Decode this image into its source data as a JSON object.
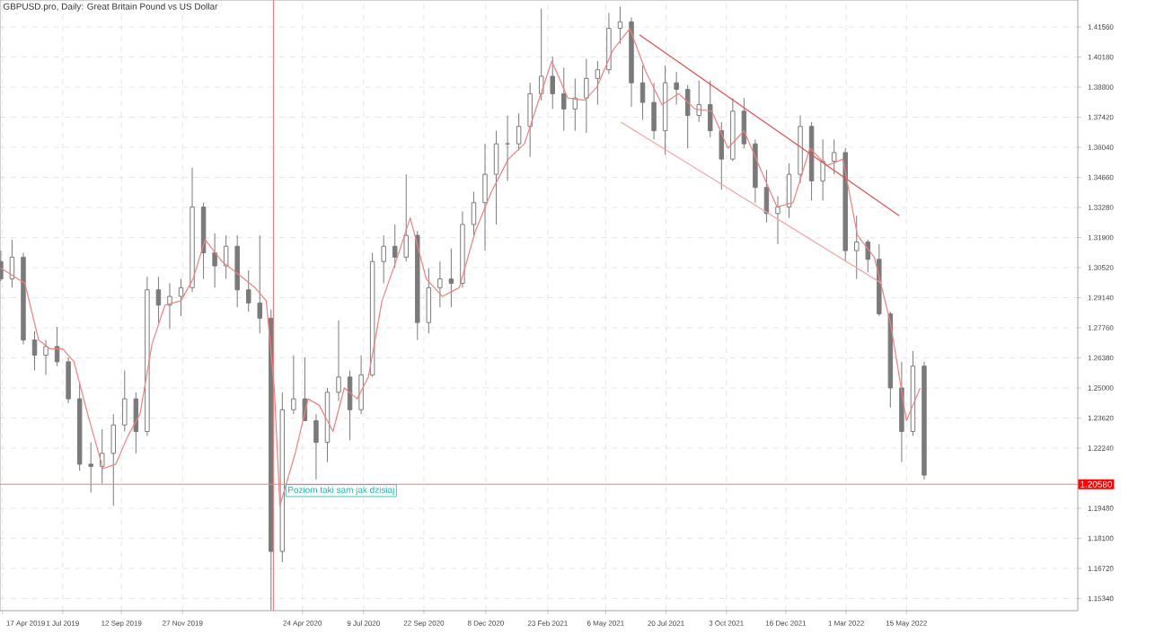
{
  "chart_data": {
    "type": "candlestick",
    "title": "GBPUSD.pro, Daily:  Great Britain Pound vs US Dollar",
    "color": "#7a7a7a",
    "grid": true,
    "xlim": [
      "2019-04-14",
      "2022-12-14"
    ],
    "ylim": [
      1.1478,
      1.428
    ],
    "xticks": [
      {
        "value": "2019-04-17",
        "label": "17 Apr 2019"
      },
      {
        "value": "2019-07-01",
        "label": "1 Jul 2019"
      },
      {
        "value": "2019-09-12",
        "label": "12 Sep 2019"
      },
      {
        "value": "2019-11-27",
        "label": "27 Nov 2019"
      },
      {
        "value": "2020-04-24",
        "label": "24 Apr 2020"
      },
      {
        "value": "2020-07-09",
        "label": "9 Jul 2020"
      },
      {
        "value": "2020-09-22",
        "label": "22 Sep 2020"
      },
      {
        "value": "2020-12-08",
        "label": "8 Dec 2020"
      },
      {
        "value": "2021-02-23",
        "label": "23 Feb 2021"
      },
      {
        "value": "2021-05-06",
        "label": "6 May 2021"
      },
      {
        "value": "2021-07-20",
        "label": "20 Jul 2021"
      },
      {
        "value": "2021-10-03",
        "label": "3 Oct 2021"
      },
      {
        "value": "2021-12-16",
        "label": "16 Dec 2021"
      },
      {
        "value": "2022-03-01",
        "label": "1 Mar 2022"
      },
      {
        "value": "2022-05-15",
        "label": "15 May 2022"
      }
    ],
    "yticks": [
      {
        "value": 1.4156,
        "label": "1.41560"
      },
      {
        "value": 1.4018,
        "label": "1.40180"
      },
      {
        "value": 1.388,
        "label": "1.38800"
      },
      {
        "value": 1.3742,
        "label": "1.37420"
      },
      {
        "value": 1.3604,
        "label": "1.36040"
      },
      {
        "value": 1.3466,
        "label": "1.34660"
      },
      {
        "value": 1.3328,
        "label": "1.33280"
      },
      {
        "value": 1.319,
        "label": "1.31900"
      },
      {
        "value": 1.3052,
        "label": "1.30520"
      },
      {
        "value": 1.2914,
        "label": "1.29140"
      },
      {
        "value": 1.2776,
        "label": "1.27760"
      },
      {
        "value": 1.2638,
        "label": "1.26380"
      },
      {
        "value": 1.25,
        "label": "1.25000"
      },
      {
        "value": 1.2362,
        "label": "1.23620"
      },
      {
        "value": 1.2224,
        "label": "1.22240"
      },
      {
        "value": 1.1948,
        "label": "1.19480"
      },
      {
        "value": 1.181,
        "label": "1.18100"
      },
      {
        "value": 1.1672,
        "label": "1.16720"
      },
      {
        "value": 1.1534,
        "label": "1.15340"
      }
    ],
    "x": [
      "2019-04-15",
      "2019-04-29",
      "2019-05-13",
      "2019-05-27",
      "2019-06-10",
      "2019-06-24",
      "2019-07-08",
      "2019-07-22",
      "2019-08-05",
      "2019-08-19",
      "2019-09-02",
      "2019-09-16",
      "2019-09-30",
      "2019-10-14",
      "2019-10-28",
      "2019-11-11",
      "2019-11-25",
      "2019-12-09",
      "2019-12-23",
      "2020-01-06",
      "2020-01-20",
      "2020-02-03",
      "2020-02-17",
      "2020-03-02",
      "2020-03-16",
      "2020-03-30",
      "2020-04-13",
      "2020-04-27",
      "2020-05-11",
      "2020-05-25",
      "2020-06-08",
      "2020-06-22",
      "2020-07-06",
      "2020-07-20",
      "2020-08-03",
      "2020-08-17",
      "2020-08-31",
      "2020-09-14",
      "2020-09-28",
      "2020-10-12",
      "2020-10-26",
      "2020-11-09",
      "2020-11-23",
      "2020-12-07",
      "2020-12-21",
      "2021-01-04",
      "2021-01-18",
      "2021-02-01",
      "2021-02-15",
      "2021-03-01",
      "2021-03-15",
      "2021-03-29",
      "2021-04-12",
      "2021-04-26",
      "2021-05-10",
      "2021-05-24",
      "2021-06-07",
      "2021-06-21",
      "2021-07-05",
      "2021-07-19",
      "2021-08-02",
      "2021-08-16",
      "2021-08-30",
      "2021-09-13",
      "2021-09-27",
      "2021-10-11",
      "2021-10-25",
      "2021-11-08",
      "2021-11-22",
      "2021-12-06",
      "2021-12-20",
      "2022-01-03",
      "2022-01-17",
      "2022-01-31",
      "2022-02-14",
      "2022-02-28",
      "2022-03-14",
      "2022-03-28",
      "2022-04-11",
      "2022-04-25",
      "2022-05-09",
      "2022-05-23",
      "2022-06-06"
    ],
    "ohlc": [
      [
        1.308,
        1.313,
        1.299,
        1.3
      ],
      [
        1.3,
        1.318,
        1.296,
        1.31
      ],
      [
        1.31,
        1.312,
        1.27,
        1.272
      ],
      [
        1.272,
        1.276,
        1.258,
        1.265
      ],
      [
        1.265,
        1.272,
        1.256,
        1.269
      ],
      [
        1.269,
        1.278,
        1.26,
        1.262
      ],
      [
        1.262,
        1.264,
        1.243,
        1.245
      ],
      [
        1.245,
        1.252,
        1.212,
        1.215
      ],
      [
        1.215,
        1.225,
        1.202,
        1.214
      ],
      [
        1.214,
        1.231,
        1.206,
        1.22
      ],
      [
        1.22,
        1.238,
        1.196,
        1.233
      ],
      [
        1.233,
        1.258,
        1.23,
        1.245
      ],
      [
        1.245,
        1.248,
        1.22,
        1.23
      ],
      [
        1.23,
        1.301,
        1.228,
        1.295
      ],
      [
        1.295,
        1.301,
        1.28,
        1.288
      ],
      [
        1.288,
        1.298,
        1.277,
        1.292
      ],
      [
        1.292,
        1.3,
        1.283,
        1.296
      ],
      [
        1.296,
        1.351,
        1.294,
        1.333
      ],
      [
        1.333,
        1.335,
        1.3,
        1.312
      ],
      [
        1.312,
        1.321,
        1.296,
        1.306
      ],
      [
        1.306,
        1.32,
        1.3,
        1.315
      ],
      [
        1.315,
        1.32,
        1.287,
        1.295
      ],
      [
        1.295,
        1.304,
        1.285,
        1.289
      ],
      [
        1.289,
        1.32,
        1.275,
        1.282
      ],
      [
        1.282,
        1.286,
        1.148,
        1.175
      ],
      [
        1.175,
        1.248,
        1.17,
        1.24
      ],
      [
        1.24,
        1.265,
        1.238,
        1.245
      ],
      [
        1.245,
        1.264,
        1.235,
        1.235
      ],
      [
        1.235,
        1.238,
        1.208,
        1.225
      ],
      [
        1.225,
        1.25,
        1.216,
        1.248
      ],
      [
        1.248,
        1.281,
        1.244,
        1.255
      ],
      [
        1.255,
        1.258,
        1.226,
        1.24
      ],
      [
        1.24,
        1.265,
        1.238,
        1.256
      ],
      [
        1.256,
        1.312,
        1.255,
        1.308
      ],
      [
        1.308,
        1.32,
        1.298,
        1.315
      ],
      [
        1.315,
        1.325,
        1.305,
        1.31
      ],
      [
        1.31,
        1.348,
        1.308,
        1.32
      ],
      [
        1.32,
        1.322,
        1.272,
        1.28
      ],
      [
        1.28,
        1.305,
        1.275,
        1.296
      ],
      [
        1.296,
        1.308,
        1.287,
        1.3
      ],
      [
        1.3,
        1.314,
        1.287,
        1.298
      ],
      [
        1.298,
        1.331,
        1.296,
        1.325
      ],
      [
        1.325,
        1.34,
        1.32,
        1.335
      ],
      [
        1.335,
        1.362,
        1.313,
        1.348
      ],
      [
        1.348,
        1.368,
        1.325,
        1.362
      ],
      [
        1.362,
        1.375,
        1.345,
        1.362
      ],
      [
        1.362,
        1.376,
        1.359,
        1.37
      ],
      [
        1.37,
        1.39,
        1.356,
        1.385
      ],
      [
        1.385,
        1.424,
        1.382,
        1.393
      ],
      [
        1.393,
        1.402,
        1.378,
        1.385
      ],
      [
        1.385,
        1.397,
        1.368,
        1.378
      ],
      [
        1.378,
        1.392,
        1.368,
        1.383
      ],
      [
        1.383,
        1.401,
        1.367,
        1.392
      ],
      [
        1.392,
        1.4,
        1.38,
        1.396
      ],
      [
        1.396,
        1.422,
        1.394,
        1.415
      ],
      [
        1.415,
        1.425,
        1.408,
        1.418
      ],
      [
        1.418,
        1.42,
        1.379,
        1.39
      ],
      [
        1.39,
        1.398,
        1.373,
        1.381
      ],
      [
        1.381,
        1.39,
        1.364,
        1.368
      ],
      [
        1.368,
        1.398,
        1.357,
        1.39
      ],
      [
        1.39,
        1.395,
        1.38,
        1.387
      ],
      [
        1.387,
        1.389,
        1.36,
        1.375
      ],
      [
        1.375,
        1.391,
        1.372,
        1.38
      ],
      [
        1.38,
        1.391,
        1.365,
        1.368
      ],
      [
        1.368,
        1.372,
        1.341,
        1.355
      ],
      [
        1.355,
        1.383,
        1.354,
        1.377
      ],
      [
        1.377,
        1.383,
        1.36,
        1.362
      ],
      [
        1.362,
        1.364,
        1.335,
        1.342
      ],
      [
        1.342,
        1.35,
        1.326,
        1.33
      ],
      [
        1.33,
        1.338,
        1.316,
        1.333
      ],
      [
        1.333,
        1.353,
        1.328,
        1.348
      ],
      [
        1.348,
        1.375,
        1.344,
        1.37
      ],
      [
        1.37,
        1.372,
        1.336,
        1.345
      ],
      [
        1.345,
        1.364,
        1.336,
        1.354
      ],
      [
        1.354,
        1.364,
        1.348,
        1.358
      ],
      [
        1.358,
        1.36,
        1.308,
        1.313
      ],
      [
        1.313,
        1.329,
        1.3,
        1.317
      ],
      [
        1.317,
        1.318,
        1.303,
        1.309
      ],
      [
        1.309,
        1.316,
        1.283,
        1.284
      ],
      [
        1.284,
        1.285,
        1.241,
        1.25
      ],
      [
        1.25,
        1.262,
        1.216,
        1.23
      ],
      [
        1.23,
        1.267,
        1.228,
        1.26
      ],
      [
        1.26,
        1.262,
        1.208,
        1.21
      ]
    ],
    "series": [
      {
        "type": "line",
        "color": "#f08080",
        "x": [
          "2019-04-15",
          "2019-05-15",
          "2019-06-01",
          "2019-06-15",
          "2019-07-01",
          "2019-07-15",
          "2019-08-01",
          "2019-08-20",
          "2019-09-05",
          "2019-09-20",
          "2019-10-05",
          "2019-10-20",
          "2019-11-05",
          "2019-11-25",
          "2019-12-10",
          "2019-12-25",
          "2020-01-15",
          "2020-02-05",
          "2020-02-25",
          "2020-03-10",
          "2020-03-20",
          "2020-03-27",
          "2020-04-15",
          "2020-05-01",
          "2020-05-15",
          "2020-06-01",
          "2020-06-15",
          "2020-07-01",
          "2020-07-15",
          "2020-08-01",
          "2020-08-20",
          "2020-09-05",
          "2020-09-25",
          "2020-10-15",
          "2020-11-05",
          "2020-11-25",
          "2020-12-15",
          "2021-01-05",
          "2021-01-25",
          "2021-02-10",
          "2021-02-28",
          "2021-03-20",
          "2021-04-10",
          "2021-04-25",
          "2021-05-15",
          "2021-06-05",
          "2021-06-25",
          "2021-07-15",
          "2021-08-05",
          "2021-08-25",
          "2021-09-15",
          "2021-10-05",
          "2021-10-25",
          "2021-11-15",
          "2021-12-05",
          "2021-12-25",
          "2022-01-15",
          "2022-02-05",
          "2022-02-25",
          "2022-03-15",
          "2022-04-05",
          "2022-04-25",
          "2022-05-15",
          "2022-06-01"
        ],
        "values": [
          1.305,
          1.298,
          1.272,
          1.268,
          1.268,
          1.262,
          1.238,
          1.213,
          1.215,
          1.228,
          1.238,
          1.27,
          1.288,
          1.29,
          1.3,
          1.318,
          1.308,
          1.302,
          1.296,
          1.29,
          1.25,
          1.196,
          1.22,
          1.245,
          1.242,
          1.23,
          1.25,
          1.245,
          1.255,
          1.29,
          1.31,
          1.328,
          1.3,
          1.292,
          1.296,
          1.322,
          1.34,
          1.355,
          1.362,
          1.38,
          1.4,
          1.383,
          1.382,
          1.388,
          1.405,
          1.415,
          1.395,
          1.38,
          1.385,
          1.378,
          1.377,
          1.36,
          1.368,
          1.35,
          1.333,
          1.335,
          1.36,
          1.352,
          1.355,
          1.32,
          1.31,
          1.28,
          1.235,
          1.25
        ]
      },
      {
        "type": "line",
        "color": "#e05050",
        "x": [
          "2021-06-17",
          "2022-05-06"
        ],
        "values": [
          1.412,
          1.329
        ]
      },
      {
        "type": "line",
        "color": "#f4a0a0",
        "x": [
          "2021-05-25",
          "2022-04-14"
        ],
        "values": [
          1.372,
          1.298
        ]
      }
    ],
    "ref_lines": [
      {
        "axis": "y",
        "value": 1.2058,
        "label": "1.20580",
        "color": "#f08080"
      },
      {
        "axis": "x",
        "value": "2020-03-19",
        "color": "#f08080"
      }
    ],
    "annotations": [
      {
        "text": "Poziom taki sam jak dzisiaj",
        "x": "2020-04-03",
        "y": 1.2058
      }
    ]
  }
}
